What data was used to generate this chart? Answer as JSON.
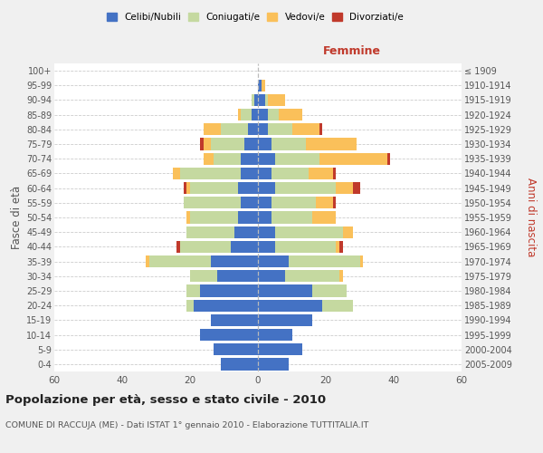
{
  "age_groups": [
    "0-4",
    "5-9",
    "10-14",
    "15-19",
    "20-24",
    "25-29",
    "30-34",
    "35-39",
    "40-44",
    "45-49",
    "50-54",
    "55-59",
    "60-64",
    "65-69",
    "70-74",
    "75-79",
    "80-84",
    "85-89",
    "90-94",
    "95-99",
    "100+"
  ],
  "birth_years": [
    "2005-2009",
    "2000-2004",
    "1995-1999",
    "1990-1994",
    "1985-1989",
    "1980-1984",
    "1975-1979",
    "1970-1974",
    "1965-1969",
    "1960-1964",
    "1955-1959",
    "1950-1954",
    "1945-1949",
    "1940-1944",
    "1935-1939",
    "1930-1934",
    "1925-1929",
    "1920-1924",
    "1915-1919",
    "1910-1914",
    "≤ 1909"
  ],
  "males": {
    "celibe": [
      11,
      13,
      17,
      14,
      19,
      17,
      12,
      14,
      8,
      7,
      6,
      5,
      6,
      5,
      5,
      4,
      3,
      2,
      1,
      0,
      0
    ],
    "coniugato": [
      0,
      0,
      0,
      0,
      2,
      4,
      8,
      18,
      15,
      14,
      14,
      17,
      14,
      18,
      8,
      10,
      8,
      3,
      1,
      0,
      0
    ],
    "vedovo": [
      0,
      0,
      0,
      0,
      0,
      0,
      0,
      1,
      0,
      0,
      1,
      0,
      1,
      2,
      3,
      2,
      5,
      1,
      0,
      0,
      0
    ],
    "divorziato": [
      0,
      0,
      0,
      0,
      0,
      0,
      0,
      0,
      1,
      0,
      0,
      0,
      1,
      0,
      0,
      1,
      0,
      0,
      0,
      0,
      0
    ]
  },
  "females": {
    "nubile": [
      9,
      13,
      10,
      16,
      19,
      16,
      8,
      9,
      5,
      5,
      4,
      4,
      5,
      4,
      5,
      4,
      3,
      3,
      2,
      1,
      0
    ],
    "coniugata": [
      0,
      0,
      0,
      0,
      9,
      10,
      16,
      21,
      18,
      20,
      12,
      13,
      18,
      11,
      13,
      10,
      7,
      3,
      1,
      0,
      0
    ],
    "vedova": [
      0,
      0,
      0,
      0,
      0,
      0,
      1,
      1,
      1,
      3,
      7,
      5,
      5,
      7,
      20,
      15,
      8,
      7,
      5,
      1,
      0
    ],
    "divorziata": [
      0,
      0,
      0,
      0,
      0,
      0,
      0,
      0,
      1,
      0,
      0,
      1,
      2,
      1,
      1,
      0,
      1,
      0,
      0,
      0,
      0
    ]
  },
  "color_celibe": "#4472c4",
  "color_coniugato": "#c5d9a0",
  "color_vedovo": "#fac05a",
  "color_divorziato": "#c0392b",
  "xlim": 60,
  "title": "Popolazione per età, sesso e stato civile - 2010",
  "subtitle": "COMUNE DI RACCUJA (ME) - Dati ISTAT 1° gennaio 2010 - Elaborazione TUTTITALIA.IT",
  "ylabel_left": "Fasce di età",
  "ylabel_right": "Anni di nascita",
  "xlabel_femmine": "Femmine",
  "bg_color": "#f0f0f0",
  "plot_bg_color": "#ffffff"
}
